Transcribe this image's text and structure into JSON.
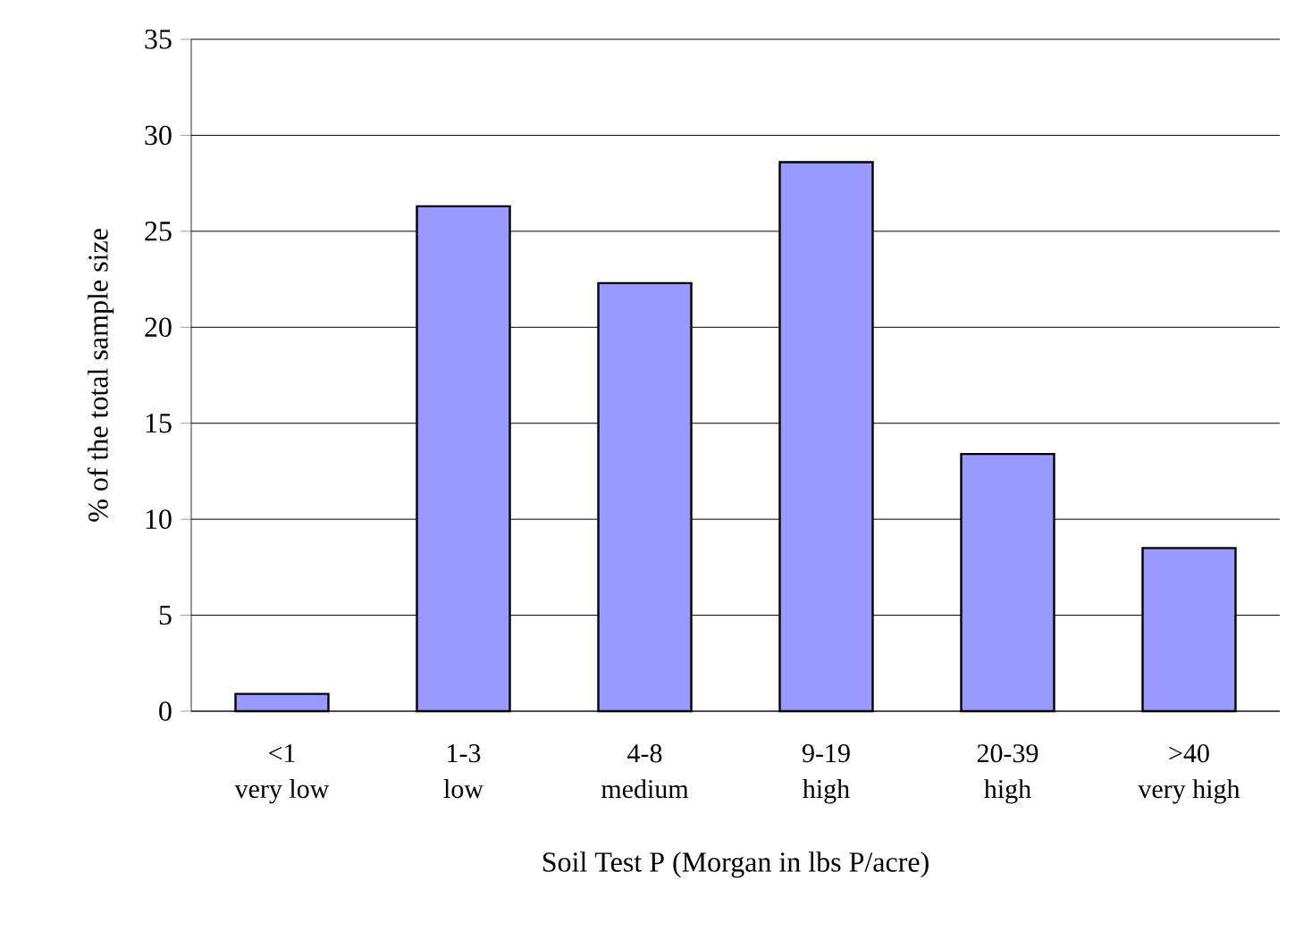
{
  "chart_data": {
    "type": "bar",
    "xlabel": "Soil Test P (Morgan in lbs P/acre)",
    "ylabel": "% of the total sample size",
    "categories": [
      "<1\nvery low",
      "1-3\nlow",
      "4-8\nmedium",
      "9-19\nhigh",
      "20-39\nhigh",
      ">40\nvery high"
    ],
    "values": [
      0.9,
      26.3,
      22.3,
      28.6,
      13.4,
      8.5
    ],
    "color": "#9999ff",
    "ylim": [
      0,
      35
    ],
    "yticks": [
      0,
      5,
      10,
      15,
      20,
      25,
      30,
      35
    ],
    "grid": "y"
  }
}
